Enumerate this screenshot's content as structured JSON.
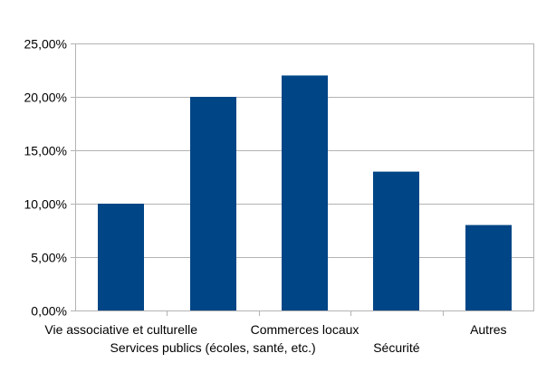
{
  "chart_data": {
    "type": "bar",
    "title": "",
    "xlabel": "",
    "ylabel": "",
    "categories": [
      "Vie associative et culturelle",
      "Services publics (écoles, santé, etc.)",
      "Commerces locaux",
      "Sécurité",
      "Autres"
    ],
    "values": [
      0.1,
      0.2,
      0.22,
      0.13,
      0.08
    ],
    "ylim": [
      0,
      0.25
    ],
    "yticks": [
      0,
      0.05,
      0.1,
      0.15,
      0.2,
      0.25
    ],
    "ytick_labels": [
      "0,00%",
      "5,00%",
      "10,00%",
      "15,00%",
      "20,00%",
      "25,00%"
    ],
    "grid": true,
    "legend": "none",
    "bar_color": "#004586",
    "grid_color": "#b3b3b3"
  }
}
